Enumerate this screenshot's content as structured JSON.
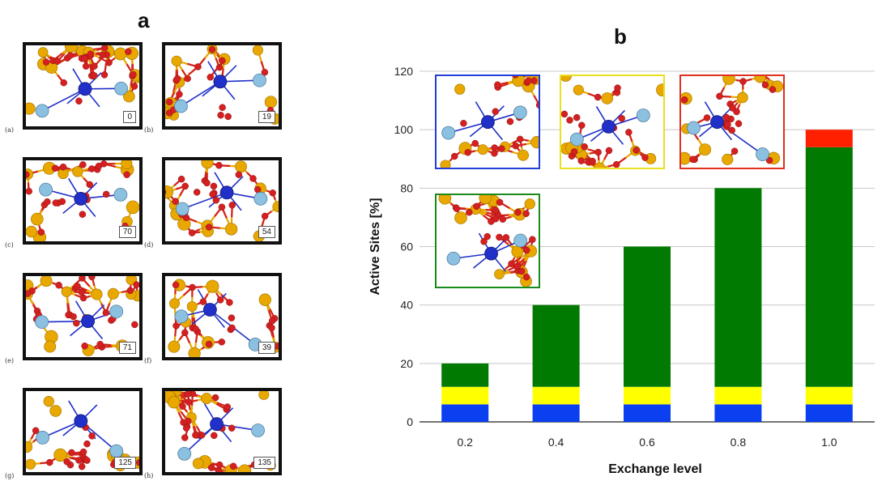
{
  "figure": {
    "panel_a_label": "a",
    "panel_b_label": "b"
  },
  "structures": [
    {
      "sub": "(a)",
      "energy": "0"
    },
    {
      "sub": "(b)",
      "energy": "19"
    },
    {
      "sub": "(c)",
      "energy": "70"
    },
    {
      "sub": "(d)",
      "energy": "54"
    },
    {
      "sub": "(e)",
      "energy": "71"
    },
    {
      "sub": "(f)",
      "energy": "39"
    },
    {
      "sub": "(g)",
      "energy": "125"
    },
    {
      "sub": "(h)",
      "energy": "135"
    }
  ],
  "insets": [
    {
      "frame_color": "#1f3fd6"
    },
    {
      "frame_color": "#e8e020"
    },
    {
      "frame_color": "#e03020"
    },
    {
      "frame_color": "#1a8a1a"
    }
  ],
  "colors": {
    "blue": "#0a40f0",
    "yellow": "#ffff00",
    "green": "#007a00",
    "red": "#ff2000",
    "oxygen": "#d42020",
    "silicon": "#e8a800",
    "aluminum": "#8cc0e0",
    "metal": "#2030c8"
  },
  "chart_data": {
    "type": "bar",
    "stacked": true,
    "categories": [
      "0.2",
      "0.4",
      "0.6",
      "0.8",
      "1.0"
    ],
    "series": [
      {
        "color": "#0a40f0",
        "values": [
          6,
          6,
          6,
          6,
          6
        ]
      },
      {
        "color": "#ffff00",
        "values": [
          6,
          6,
          6,
          6,
          6
        ]
      },
      {
        "color": "#007a00",
        "values": [
          8,
          28,
          48,
          68,
          82
        ]
      },
      {
        "color": "#ff2000",
        "values": [
          0,
          0,
          0,
          0,
          6
        ]
      }
    ],
    "xlabel": "Exchange level",
    "ylabel": "Active Sites [%]",
    "ylim": [
      0,
      120
    ],
    "yticks": [
      "0",
      "20",
      "40",
      "60",
      "80",
      "100",
      "120"
    ],
    "grid": true
  }
}
